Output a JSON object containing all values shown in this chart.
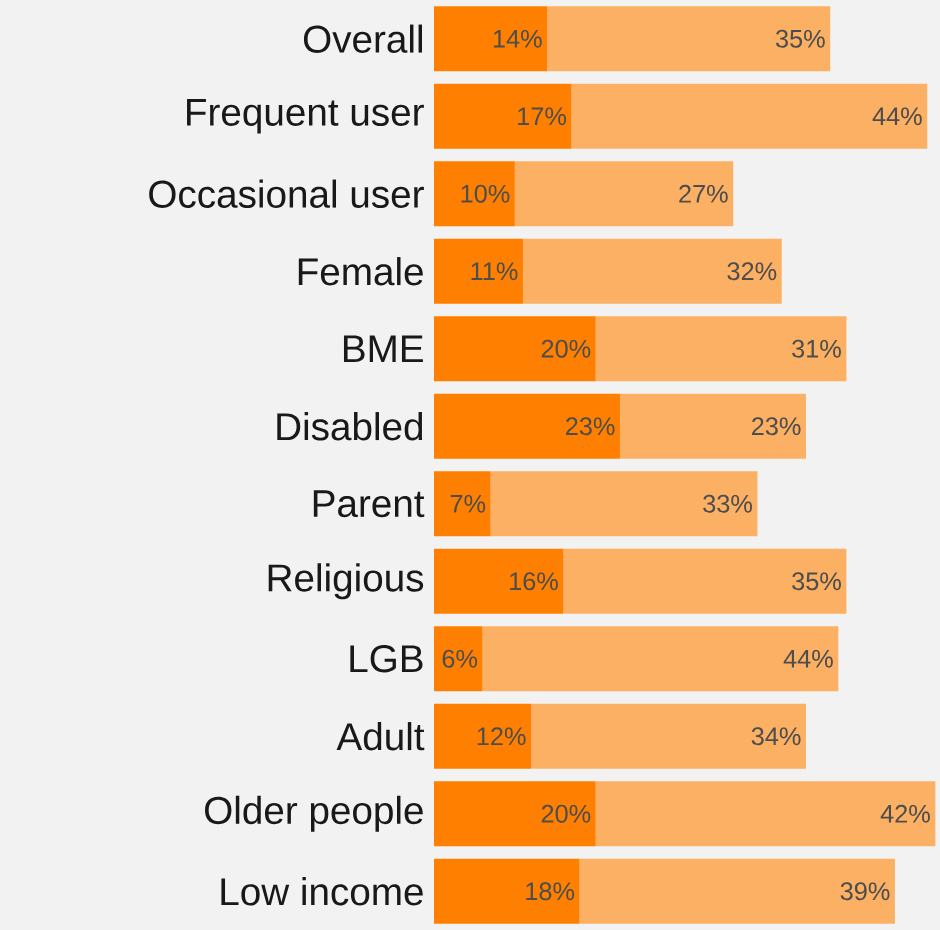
{
  "chart_data": {
    "type": "bar",
    "orientation": "horizontal",
    "stacked": true,
    "categories": [
      "Overall",
      "Frequent user",
      "Occasional user",
      "Female",
      "BME",
      "Disabled",
      "Parent",
      "Religious",
      "LGB",
      "Adult",
      "Older people",
      "Low income"
    ],
    "series": [
      {
        "color": "#ff8000",
        "values": [
          14,
          17,
          10,
          11,
          20,
          23,
          7,
          16,
          6,
          12,
          20,
          18
        ],
        "value_labels": [
          "14%",
          "17%",
          "10%",
          "11%",
          "20%",
          "23%",
          "7%",
          "16%",
          "6%",
          "12%",
          "20%",
          "18%"
        ]
      },
      {
        "color": "#fbb063",
        "values": [
          35,
          44,
          27,
          32,
          31,
          23,
          33,
          35,
          44,
          34,
          42,
          39
        ],
        "value_labels": [
          "35%",
          "44%",
          "27%",
          "32%",
          "31%",
          "23%",
          "33%",
          "35%",
          "44%",
          "34%",
          "42%",
          "39%"
        ]
      }
    ]
  }
}
